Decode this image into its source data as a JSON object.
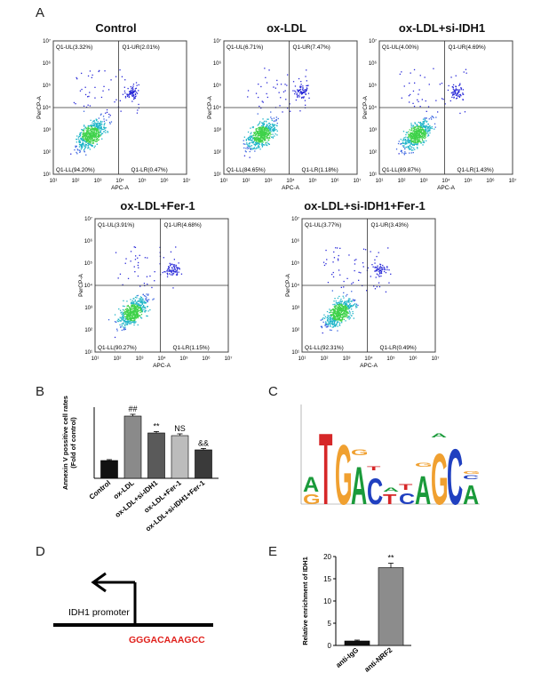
{
  "panel_letters": {
    "a": "A",
    "b": "B",
    "c": "C",
    "d": "D",
    "e": "E"
  },
  "flow_plots": [
    {
      "title": "Control",
      "ul": "Q1-UL(3.32%)",
      "ur": "Q1-UR(2.01%)",
      "ll": "Q1-LL(94.20%)",
      "lr": "Q1-LR(0.47%)"
    },
    {
      "title": "ox-LDL",
      "ul": "Q1-UL(6.71%)",
      "ur": "Q1-UR(7.47%)",
      "ll": "Q1-LL(84.65%)",
      "lr": "Q1-LR(1.18%)"
    },
    {
      "title": "ox-LDL+si-IDH1",
      "ul": "Q1-UL(4.00%)",
      "ur": "Q1-UR(4.69%)",
      "ll": "Q1-LL(89.87%)",
      "lr": "Q1-LR(1.43%)"
    },
    {
      "title": "ox-LDL+Fer-1",
      "ul": "Q1-UL(3.91%)",
      "ur": "Q1-UR(4.68%)",
      "ll": "Q1-LL(90.27%)",
      "lr": "Q1-LR(1.15%)"
    },
    {
      "title": "ox-LDL+si-IDH1+Fer-1",
      "ul": "Q1-UL(3.77%)",
      "ur": "Q1-UR(3.43%)",
      "ll": "Q1-LL(92.31%)",
      "lr": "Q1-LR(0.49%)"
    }
  ],
  "flow_axes": {
    "xlabel": "APC-A",
    "ylabel": "PerCP-A",
    "ticks": [
      "10¹",
      "10²",
      "10³",
      "10⁴",
      "10⁵",
      "10⁶",
      "10⁷"
    ]
  },
  "chart_data": [
    {
      "type": "bar",
      "ylabel": "Annexin V possitive cell rates (Fold of control)",
      "categories": [
        "Control",
        "ox-LDL",
        "ox-LDL+si-IDH1",
        "ox-LDL+Fer-1",
        "ox-LDL+si-IDH1+Fer-1"
      ],
      "values": [
        1.0,
        3.5,
        2.55,
        2.4,
        1.6
      ],
      "errors": [
        0.05,
        0.1,
        0.08,
        0.1,
        0.08
      ],
      "annotations": [
        "",
        "##",
        "**",
        "NS",
        "&&"
      ],
      "colors": [
        "#111111",
        "#8a8a8a",
        "#5a5a5a",
        "#bcbcbc",
        "#3a3a3a"
      ],
      "ylim": [
        0,
        4
      ]
    },
    {
      "type": "bar",
      "ylabel": "Relative enrichment of IDH1",
      "categories": [
        "anti-IgG",
        "anti-NRF2"
      ],
      "values": [
        1.0,
        17.5
      ],
      "errors": [
        0.2,
        1.0
      ],
      "annotations": [
        "",
        "**"
      ],
      "colors": [
        "#111111",
        "#8c8c8c"
      ],
      "yticks": [
        "0",
        "5",
        "10",
        "15",
        "20"
      ],
      "ylim": [
        0,
        20
      ]
    }
  ],
  "motif": {
    "letters": [
      "A",
      "T",
      "G",
      "A",
      "C",
      "T",
      "C",
      "A",
      "G",
      "C",
      "A"
    ],
    "colors": {
      "A": "#1a9a3a",
      "T": "#d62728",
      "G": "#f0a030",
      "C": "#2040c0"
    }
  },
  "promoter": {
    "label": "IDH1 promoter",
    "sequence": "GGGACAAAGCC",
    "sequence_color": "#e0201b"
  }
}
